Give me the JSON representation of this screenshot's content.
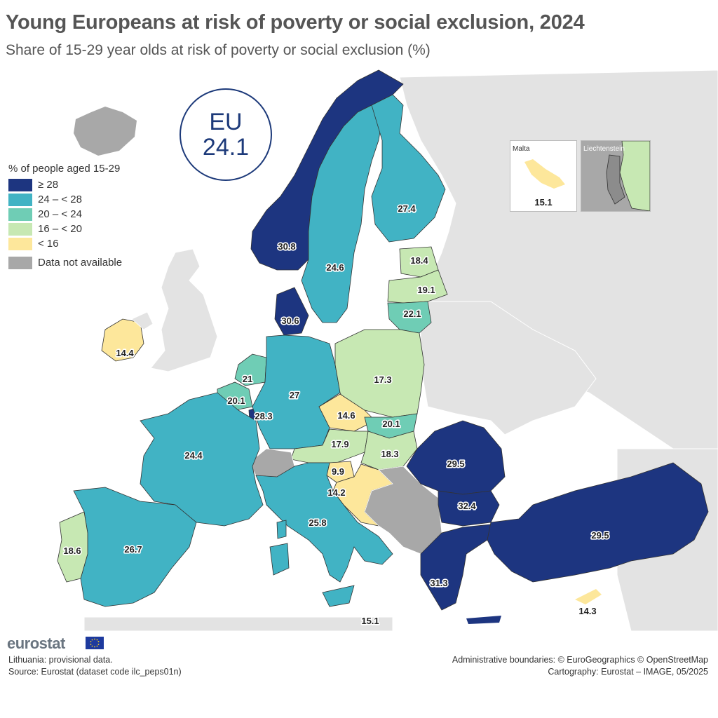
{
  "header": {
    "title": "Young Europeans at risk of poverty or social exclusion, 2024",
    "subtitle": "Share of 15-29 year olds at risk of poverty or social exclusion (%)"
  },
  "eu_badge": {
    "name": "EU",
    "value": "24.1"
  },
  "legend": {
    "title": "% of people aged 15-29",
    "items": [
      {
        "label": "≥ 28",
        "color": "#1d3580"
      },
      {
        "label": "24 – < 28",
        "color": "#41b3c4"
      },
      {
        "label": "20 – < 24",
        "color": "#6fcdb5"
      },
      {
        "label": "16 – < 20",
        "color": "#c7e8b3"
      },
      {
        "label": "< 16",
        "color": "#fde79b"
      },
      {
        "label": "Data not available",
        "color": "#a8a8a8"
      }
    ]
  },
  "colors": {
    "background_land": "#e3e3e3",
    "sea": "#ffffff",
    "border": "#333333"
  },
  "regions": [
    {
      "name": "Norway",
      "value": "30.8",
      "cls": 0
    },
    {
      "name": "Sweden",
      "value": "24.6",
      "cls": 1
    },
    {
      "name": "Finland",
      "value": "27.4",
      "cls": 1
    },
    {
      "name": "Estonia",
      "value": "18.4",
      "cls": 3
    },
    {
      "name": "Latvia",
      "value": "19.1",
      "cls": 3
    },
    {
      "name": "Lithuania",
      "value": "22.1",
      "cls": 2
    },
    {
      "name": "Denmark",
      "value": "30.6",
      "cls": 0
    },
    {
      "name": "Ireland",
      "value": "14.4",
      "cls": 4
    },
    {
      "name": "Netherlands",
      "value": "21",
      "cls": 2
    },
    {
      "name": "Belgium",
      "value": "20.1",
      "cls": 2
    },
    {
      "name": "Luxembourg",
      "value": "28.3",
      "cls": 0
    },
    {
      "name": "Germany",
      "value": "27",
      "cls": 1
    },
    {
      "name": "Poland",
      "value": "17.3",
      "cls": 3
    },
    {
      "name": "Czechia",
      "value": "14.6",
      "cls": 4
    },
    {
      "name": "Slovakia",
      "value": "20.1",
      "cls": 2
    },
    {
      "name": "Austria",
      "value": "17.9",
      "cls": 3
    },
    {
      "name": "Hungary",
      "value": "18.3",
      "cls": 3
    },
    {
      "name": "Slovenia",
      "value": "9.9",
      "cls": 4
    },
    {
      "name": "Croatia",
      "value": "14.2",
      "cls": 4
    },
    {
      "name": "Romania",
      "value": "29.5",
      "cls": 0
    },
    {
      "name": "Bulgaria",
      "value": "32.4",
      "cls": 0
    },
    {
      "name": "Greece",
      "value": "31.3",
      "cls": 0
    },
    {
      "name": "Turkey",
      "value": "29.5",
      "cls": 0
    },
    {
      "name": "Cyprus",
      "value": "14.3",
      "cls": 4
    },
    {
      "name": "France",
      "value": "24.4",
      "cls": 1
    },
    {
      "name": "Spain",
      "value": "26.7",
      "cls": 1
    },
    {
      "name": "Portugal",
      "value": "18.6",
      "cls": 3
    },
    {
      "name": "Italy",
      "value": "25.8",
      "cls": 1
    },
    {
      "name": "Malta",
      "value": "15.1",
      "cls": 4
    },
    {
      "name": "Switzerland",
      "value": "",
      "cls": 5
    },
    {
      "name": "Iceland",
      "value": "",
      "cls": 5
    },
    {
      "name": "Western Balkans",
      "value": "",
      "cls": 5
    }
  ],
  "insets": {
    "malta": {
      "title": "Malta",
      "value": "15.1"
    },
    "liechtenstein": {
      "title": "Liechtenstein"
    }
  },
  "footer": {
    "logo": "eurostat",
    "note": "Lithuania: provisional data.",
    "source": "Source: Eurostat (dataset code ilc_peps01n)",
    "boundaries": "Administrative boundaries: © EuroGeographics © OpenStreetMap",
    "cartography": "Cartography: Eurostat – IMAGE, 05/2025"
  }
}
